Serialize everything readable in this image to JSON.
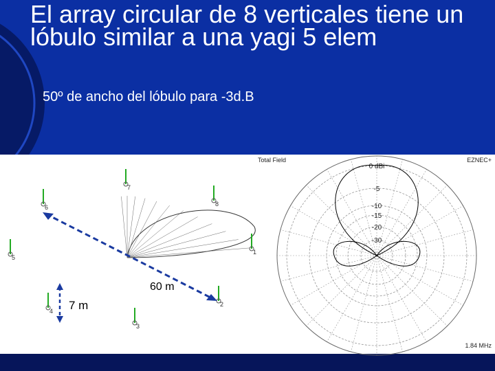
{
  "slide": {
    "title": "El array circular de 8 verticales tiene un lóbulo similar a una yagi 5 elem",
    "subtitle": "50º de ancho del lóbulo para -3d.B"
  },
  "figure": {
    "distance_label": "60 m",
    "spacing_label": "7 m",
    "antennas": [
      "7",
      "6",
      "8",
      "5",
      "1",
      "4",
      "2",
      "3"
    ],
    "plot_title": "Total Field",
    "software": "EZNEC+",
    "frequency": "1.84 MHz",
    "rings": [
      "0 dBi",
      "-5",
      "-10",
      "-15",
      "-20",
      "-30"
    ]
  }
}
